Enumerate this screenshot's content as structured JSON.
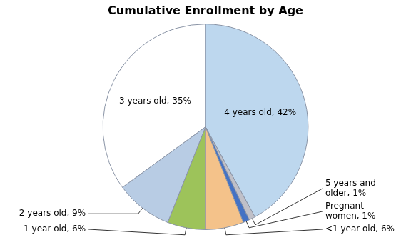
{
  "chart_data": {
    "type": "pie",
    "title": "Cumulative Enrollment by Age",
    "categories": [
      "4 years old, 42%",
      "5 years and\nolder, 1%",
      "Pregnant\nwomen, 1%",
      "<1 year old, 6%",
      "1 year old, 6%",
      "2 years old, 9%",
      "3 years old, 35%"
    ],
    "values": [
      42,
      1,
      1,
      6,
      6,
      9,
      35
    ],
    "colors": [
      "#bdd7ee",
      "#c0c0c8",
      "#4472c4",
      "#f4c28a",
      "#9dc35a",
      "#b8cce4",
      "#ffffff"
    ]
  }
}
